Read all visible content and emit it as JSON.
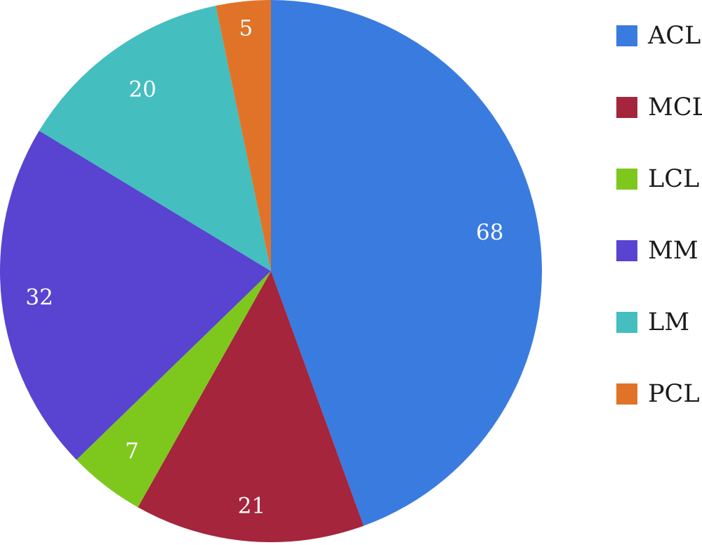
{
  "chart_data": {
    "type": "pie",
    "title": "",
    "categories": [
      "ACL",
      "MCL",
      "LCL",
      "MM",
      "LM",
      "PCL"
    ],
    "values": [
      68,
      21,
      7,
      32,
      20,
      5
    ],
    "colors": [
      "#3a7be0",
      "#a5253c",
      "#7ec81e",
      "#5844d0",
      "#44bebe",
      "#e07328"
    ],
    "start_angle_deg": 0,
    "direction": "clockwise",
    "data_labels": [
      "68",
      "21",
      "7",
      "32",
      "20",
      "5"
    ],
    "legend": {
      "position": "right",
      "entries": [
        "ACL",
        "MCL",
        "LCL",
        "MM",
        "LM",
        "PCL"
      ]
    }
  }
}
